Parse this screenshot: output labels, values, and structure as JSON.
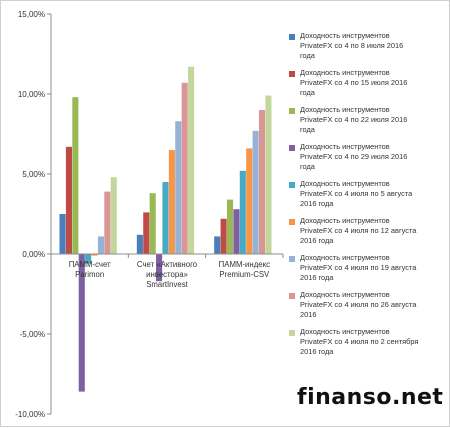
{
  "chart_data": {
    "type": "bar",
    "categories": [
      "ПАММ-счет Parimon",
      "Счет «Активного инвестора» SmartInvest",
      "ПАММ-индекс Premium-CSV"
    ],
    "category_lines": [
      [
        "ПАММ-счет",
        "Parimon"
      ],
      [
        "Счет «Активного",
        "инвестора»",
        "SmartInvest"
      ],
      [
        "ПАММ-индекс",
        "Premium-CSV"
      ]
    ],
    "series": [
      {
        "name": "Доходность инструментов PrivateFX со 4 по 8 июля 2016 года",
        "color": "#4a7ebb",
        "values": [
          2.5,
          1.2,
          1.1
        ]
      },
      {
        "name": "Доходность инструментов PrivateFX со 4 по 15 июля 2016 года",
        "color": "#be4b48",
        "values": [
          6.7,
          2.6,
          2.2
        ]
      },
      {
        "name": "Доходность инструментов PrivateFX со 4 по 22 июля 2016 года",
        "color": "#98b954",
        "values": [
          9.8,
          3.8,
          3.4
        ]
      },
      {
        "name": "Доходность инструментов PrivateFX со 4 по 29 июля 2016 года",
        "color": "#7d60a0",
        "values": [
          -8.6,
          -1.7,
          2.8
        ]
      },
      {
        "name": "Доходность инструментов PrivateFX со 4 июля по 5 августа 2016 года",
        "color": "#46aac5",
        "values": [
          -0.6,
          4.5,
          5.2
        ]
      },
      {
        "name": "Доходность инструментов PrivateFX со 4 июля по 12 августа 2016 года",
        "color": "#f79646",
        "values": [
          -0.1,
          6.5,
          6.6
        ]
      },
      {
        "name": "Доходность инструментов PrivateFX со 4 июля по 19 августа 2016 года",
        "color": "#95b3d7",
        "values": [
          1.1,
          8.3,
          7.7
        ]
      },
      {
        "name": "Доходность инструментов PrivateFX со 4 июля по 26 августа 2016 года",
        "color": "#d99694",
        "values": [
          3.9,
          10.7,
          9.0
        ]
      },
      {
        "name": "Доходность инструментов PrivateFX со 4 июля по 2 сентября 2016 года",
        "color": "#c3d69b",
        "values": [
          4.8,
          11.7,
          9.9
        ]
      }
    ],
    "legend_lines": [
      [
        "Доходность инструментов",
        "PrivateFX со 4 по 8 июля 2016",
        "года"
      ],
      [
        "Доходность инструментов",
        "PrivateFX со 4 по 15 июля 2016",
        "года"
      ],
      [
        "Доходность инструментов",
        "PrivateFX со 4 по 22 июля 2016",
        "года"
      ],
      [
        "Доходность инструментов",
        "PrivateFX со 4 по 29 июля 2016",
        "года"
      ],
      [
        "Доходность инструментов",
        "PrivateFX со 4 июля по 5 августа",
        "2016 года"
      ],
      [
        "Доходность инструментов",
        "PrivateFX со 4 июля по 12 августа",
        "2016 года"
      ],
      [
        "Доходность инструментов",
        "PrivateFX со 4 июля по 19 августа",
        "2016 года"
      ],
      [
        "Доходность инструментов",
        "PrivateFX со 4 июля по 26 августа",
        "2016"
      ],
      [
        "Доходность инструментов",
        "PrivateFX со 4 июля по 2 сентября",
        "2016 года"
      ]
    ],
    "yticks": [
      -10,
      -5,
      0,
      5,
      10,
      15
    ],
    "ytick_labels": [
      "-10,00%",
      "-5,00%",
      "0,00%",
      "5,00%",
      "10,00%",
      "15,00%"
    ],
    "ylim": [
      -10,
      15
    ],
    "unit": "%",
    "grid": false,
    "legend_position": "right",
    "title": "",
    "xlabel": "",
    "ylabel": ""
  },
  "watermark": "finanso.net"
}
